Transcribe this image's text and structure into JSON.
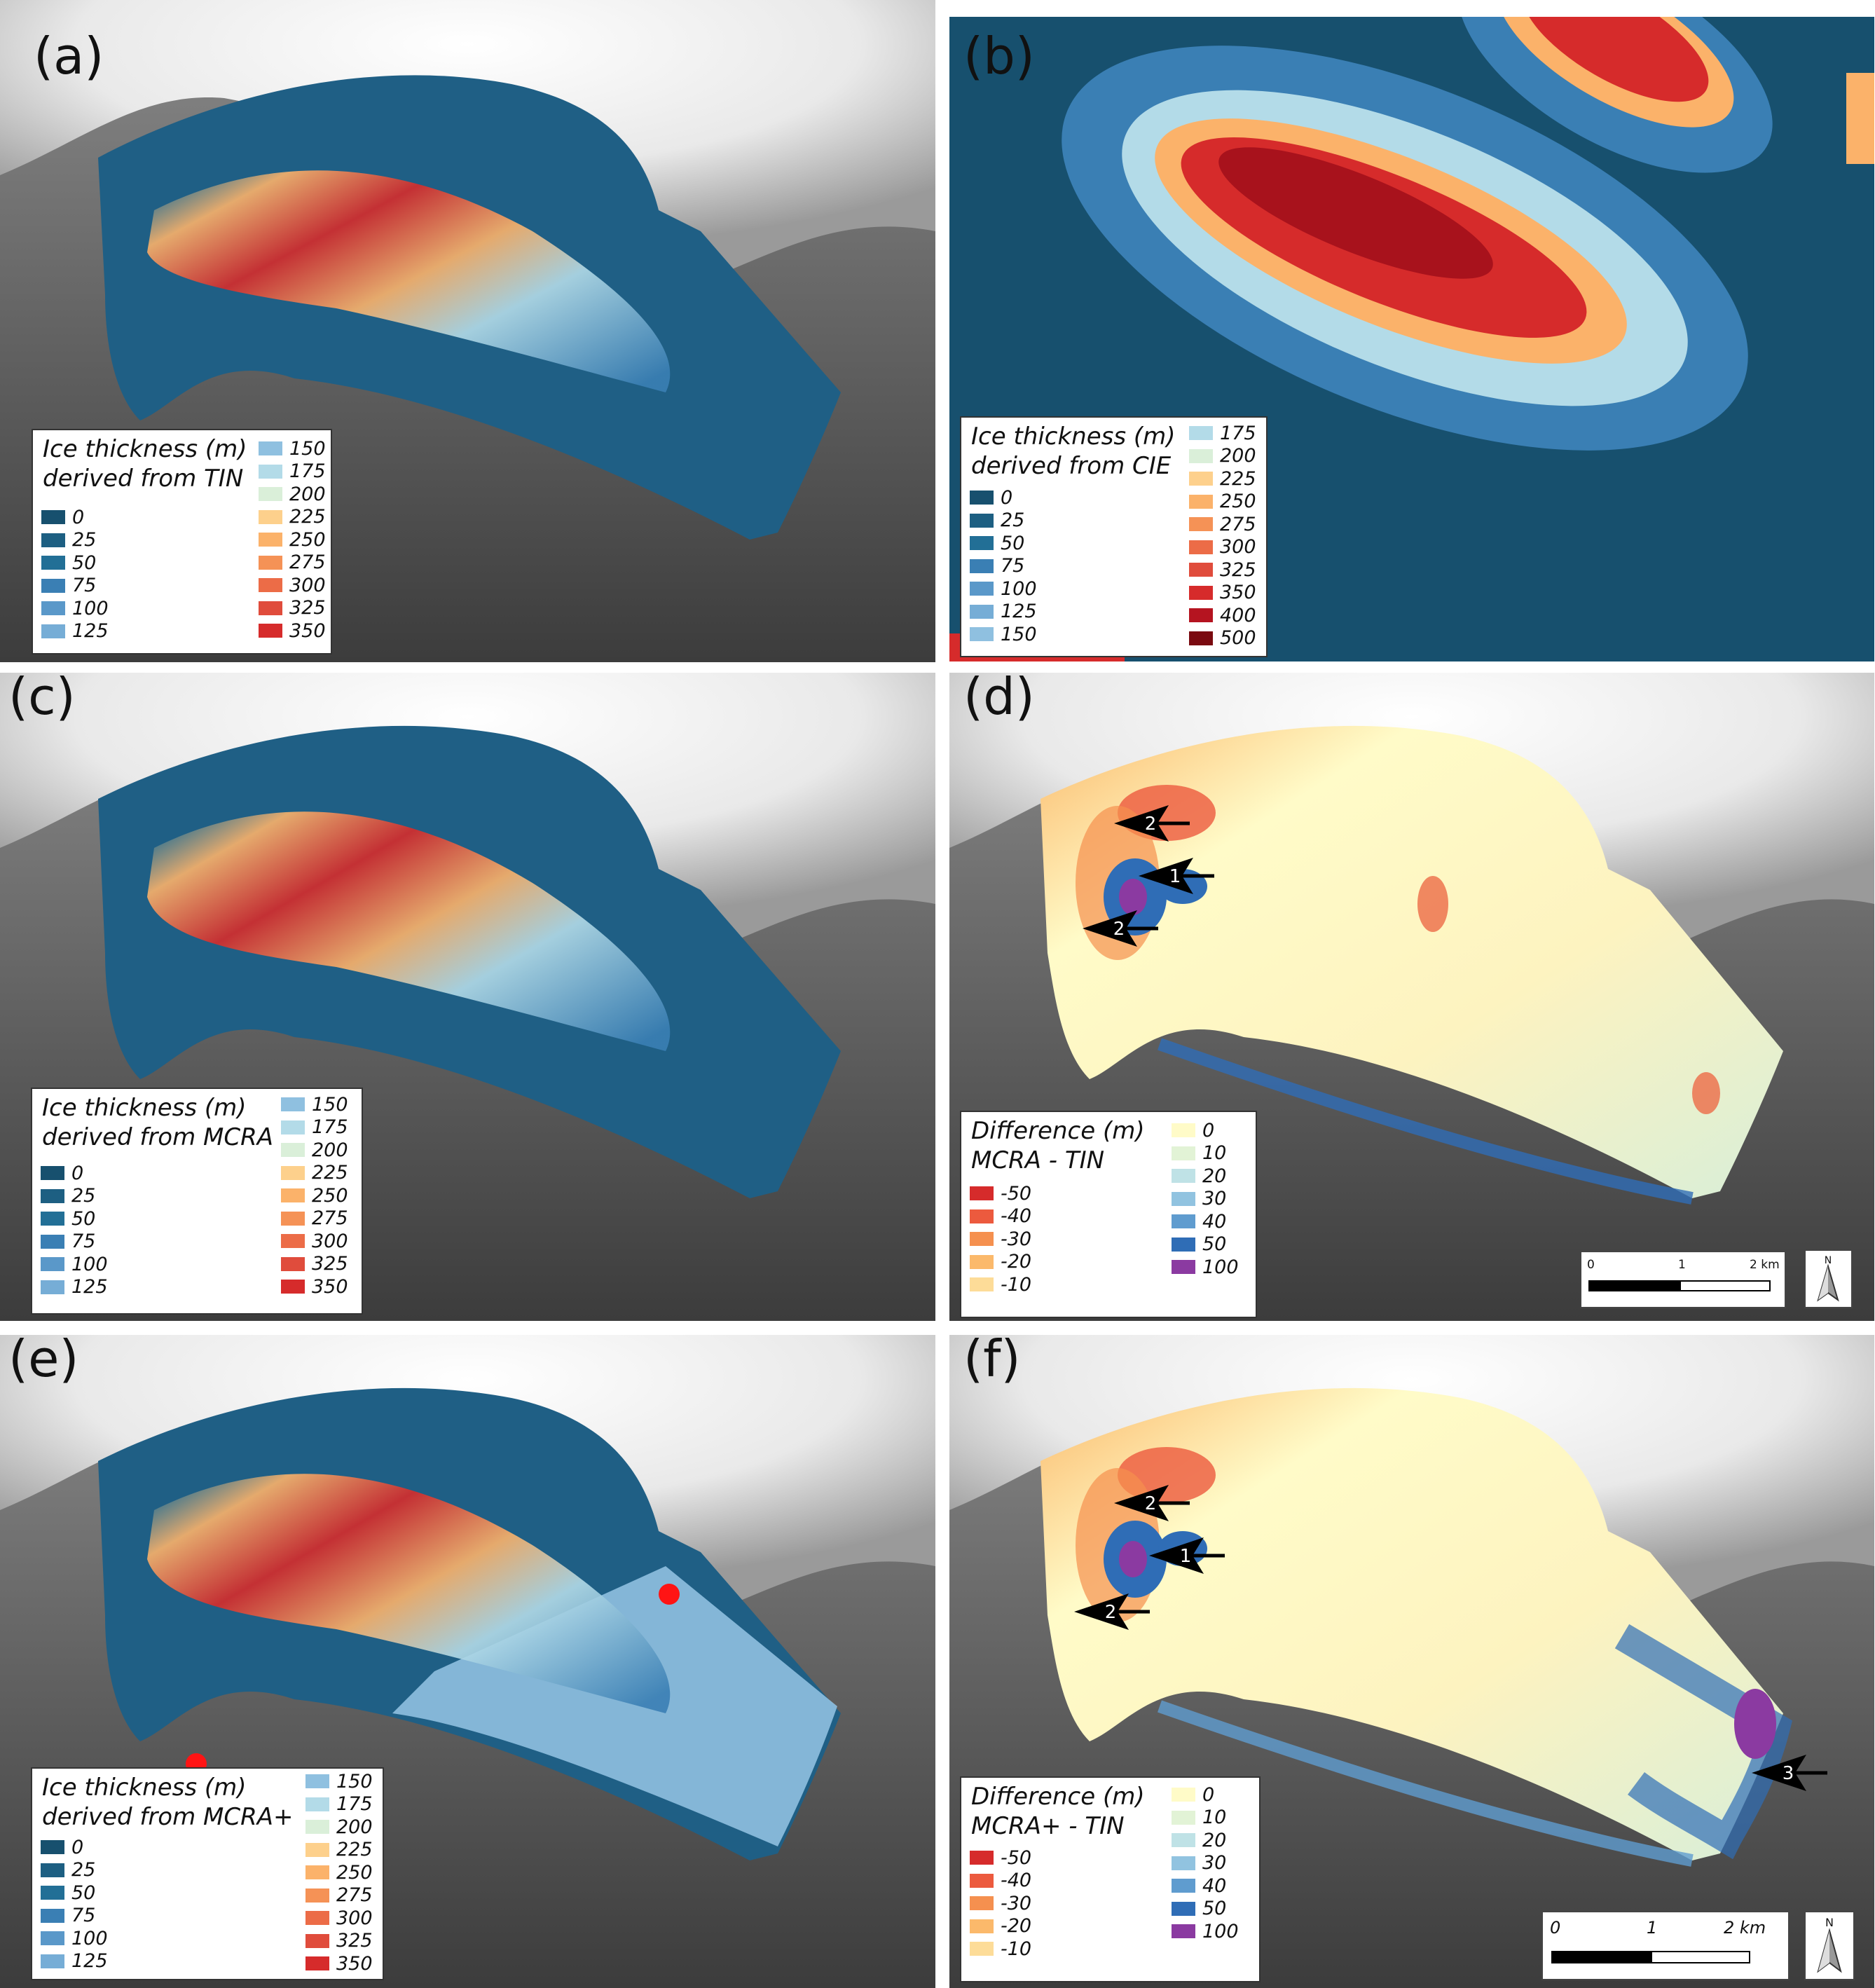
{
  "panels": [
    {
      "id": "a",
      "label": "(a)",
      "legend": {
        "title_line1": "Ice thickness (m)",
        "title_line2": "derived from TIN",
        "items": [
          {
            "value": "0",
            "color": "#17506e"
          },
          {
            "value": "25",
            "color": "#1d5f82"
          },
          {
            "value": "50",
            "color": "#226f96"
          },
          {
            "value": "75",
            "color": "#3a7fb4"
          },
          {
            "value": "100",
            "color": "#5a98c9"
          },
          {
            "value": "125",
            "color": "#76add6"
          },
          {
            "value": "150",
            "color": "#8fc0e0"
          },
          {
            "value": "175",
            "color": "#b3dbe8"
          },
          {
            "value": "200",
            "color": "#daefd9"
          },
          {
            "value": "225",
            "color": "#fdd08c"
          },
          {
            "value": "250",
            "color": "#fbb26a"
          },
          {
            "value": "275",
            "color": "#f59256"
          },
          {
            "value": "300",
            "color": "#ec6c47"
          },
          {
            "value": "325",
            "color": "#e04c3c"
          },
          {
            "value": "350",
            "color": "#d62b2b"
          }
        ]
      }
    },
    {
      "id": "b",
      "label": "(b)",
      "legend": {
        "title_line1": "Ice thickness (m)",
        "title_line2": "derived from CIE",
        "items": [
          {
            "value": "0",
            "color": "#17506e"
          },
          {
            "value": "25",
            "color": "#1d5f82"
          },
          {
            "value": "50",
            "color": "#226f96"
          },
          {
            "value": "75",
            "color": "#3a7fb4"
          },
          {
            "value": "100",
            "color": "#5a98c9"
          },
          {
            "value": "125",
            "color": "#76add6"
          },
          {
            "value": "150",
            "color": "#8fc0e0"
          },
          {
            "value": "175",
            "color": "#b3dbe8"
          },
          {
            "value": "200",
            "color": "#daefd9"
          },
          {
            "value": "225",
            "color": "#fdd08c"
          },
          {
            "value": "250",
            "color": "#fbb26a"
          },
          {
            "value": "275",
            "color": "#f59256"
          },
          {
            "value": "300",
            "color": "#ec6c47"
          },
          {
            "value": "325",
            "color": "#e04c3c"
          },
          {
            "value": "350",
            "color": "#d62b2b"
          },
          {
            "value": "400",
            "color": "#b51420"
          },
          {
            "value": "500",
            "color": "#7a0a10"
          }
        ]
      }
    },
    {
      "id": "c",
      "label": "(c)",
      "legend": {
        "title_line1": "Ice thickness (m)",
        "title_line2": "derived from MCRA",
        "items": [
          {
            "value": "0",
            "color": "#17506e"
          },
          {
            "value": "25",
            "color": "#1d5f82"
          },
          {
            "value": "50",
            "color": "#226f96"
          },
          {
            "value": "75",
            "color": "#3a7fb4"
          },
          {
            "value": "100",
            "color": "#5a98c9"
          },
          {
            "value": "125",
            "color": "#76add6"
          },
          {
            "value": "150",
            "color": "#8fc0e0"
          },
          {
            "value": "175",
            "color": "#b3dbe8"
          },
          {
            "value": "200",
            "color": "#daefd9"
          },
          {
            "value": "225",
            "color": "#fdd08c"
          },
          {
            "value": "250",
            "color": "#fbb26a"
          },
          {
            "value": "275",
            "color": "#f59256"
          },
          {
            "value": "300",
            "color": "#ec6c47"
          },
          {
            "value": "325",
            "color": "#e04c3c"
          },
          {
            "value": "350",
            "color": "#d62b2b"
          }
        ]
      }
    },
    {
      "id": "d",
      "label": "(d)",
      "legend": {
        "title_line1": "Difference (m)",
        "title_line2": "MCRA - TIN",
        "items": [
          {
            "value": "-50",
            "color": "#d62b2b"
          },
          {
            "value": "-40",
            "color": "#ec5a3e"
          },
          {
            "value": "-30",
            "color": "#f5904f"
          },
          {
            "value": "-20",
            "color": "#fbb96b"
          },
          {
            "value": "-10",
            "color": "#fddc98"
          },
          {
            "value": "0",
            "color": "#fffbc8"
          },
          {
            "value": "10",
            "color": "#e2f3d6"
          },
          {
            "value": "20",
            "color": "#bfe2e6"
          },
          {
            "value": "30",
            "color": "#91c3e0"
          },
          {
            "value": "40",
            "color": "#5f9ccf"
          },
          {
            "value": "50",
            "color": "#2f6db6"
          },
          {
            "value": "100",
            "color": "#8b3aa1"
          }
        ]
      },
      "arrows": [
        "2",
        "1",
        "2"
      ],
      "scale": {
        "ticks": [
          "0",
          "1",
          "2 km"
        ]
      },
      "north": "N"
    },
    {
      "id": "e",
      "label": "(e)",
      "legend": {
        "title_line1": "Ice thickness (m)",
        "title_line2": "derived from MCRA+",
        "items": [
          {
            "value": "0",
            "color": "#17506e"
          },
          {
            "value": "25",
            "color": "#1d5f82"
          },
          {
            "value": "50",
            "color": "#226f96"
          },
          {
            "value": "75",
            "color": "#3a7fb4"
          },
          {
            "value": "100",
            "color": "#5a98c9"
          },
          {
            "value": "125",
            "color": "#76add6"
          },
          {
            "value": "150",
            "color": "#8fc0e0"
          },
          {
            "value": "175",
            "color": "#b3dbe8"
          },
          {
            "value": "200",
            "color": "#daefd9"
          },
          {
            "value": "225",
            "color": "#fdd08c"
          },
          {
            "value": "250",
            "color": "#fbb26a"
          },
          {
            "value": "275",
            "color": "#f59256"
          },
          {
            "value": "300",
            "color": "#ec6c47"
          },
          {
            "value": "325",
            "color": "#e04c3c"
          },
          {
            "value": "350",
            "color": "#d62b2b"
          }
        ]
      }
    },
    {
      "id": "f",
      "label": "(f)",
      "legend": {
        "title_line1": "Difference (m)",
        "title_line2": "MCRA+ - TIN",
        "items": [
          {
            "value": "-50",
            "color": "#d62b2b"
          },
          {
            "value": "-40",
            "color": "#ec5a3e"
          },
          {
            "value": "-30",
            "color": "#f5904f"
          },
          {
            "value": "-20",
            "color": "#fbb96b"
          },
          {
            "value": "-10",
            "color": "#fddc98"
          },
          {
            "value": "0",
            "color": "#fffbc8"
          },
          {
            "value": "10",
            "color": "#e2f3d6"
          },
          {
            "value": "20",
            "color": "#bfe2e6"
          },
          {
            "value": "30",
            "color": "#91c3e0"
          },
          {
            "value": "40",
            "color": "#5f9ccf"
          },
          {
            "value": "50",
            "color": "#2f6db6"
          },
          {
            "value": "100",
            "color": "#8b3aa1"
          }
        ]
      },
      "arrows": [
        "2",
        "1",
        "2",
        "3"
      ],
      "scale": {
        "ticks": [
          "0",
          "1",
          "2 km"
        ]
      },
      "north": "N"
    }
  ]
}
